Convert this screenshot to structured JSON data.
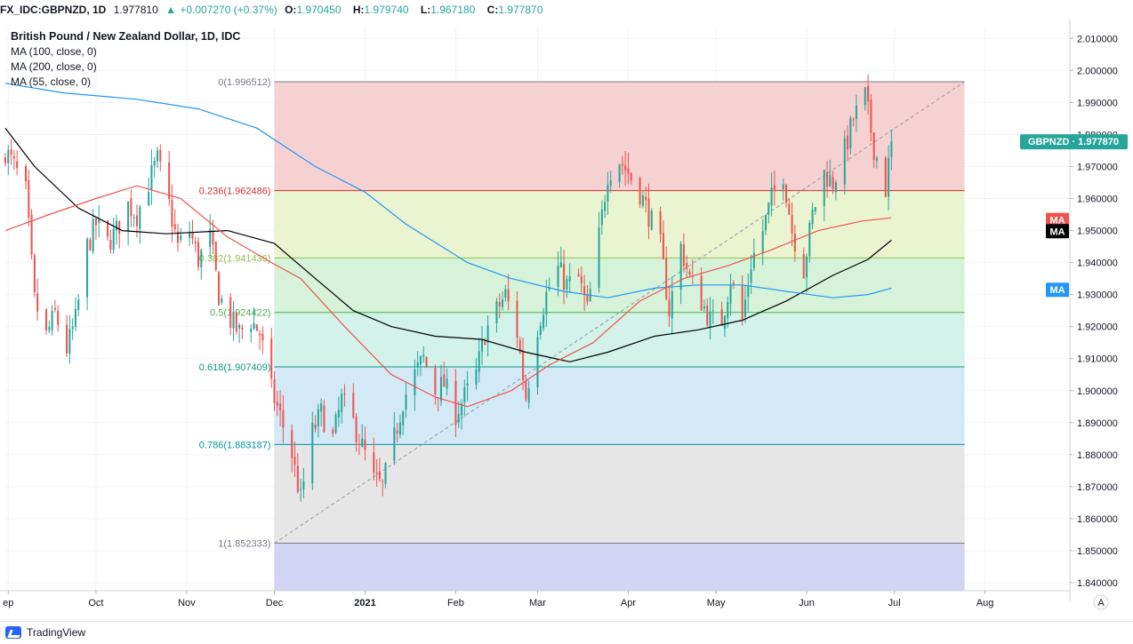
{
  "header": {
    "symbol": "FX_IDC:GBPNZD, 1D",
    "last": "1.977810",
    "change": "+0.007270 (+0.37%)",
    "o_label": "O:",
    "o": "1.970450",
    "h_label": "H:",
    "h": "1.979740",
    "l_label": "L:",
    "l": "1.967180",
    "c_label": "C:",
    "c": "1.977870"
  },
  "legend": {
    "title": "British Pound / New Zealand Dollar, 1D, IDC",
    "items": [
      "MA (100, close, 0)",
      "MA (200, close, 0)",
      "MA (55, close, 0)"
    ]
  },
  "footer": {
    "brand": "TradingView"
  },
  "chart_data": {
    "type": "candlestick",
    "x_axis": {
      "range": [
        "2020-08-31",
        "2021-08-30"
      ],
      "ticks": [
        {
          "label": "ep",
          "date": "2020-09-01"
        },
        {
          "label": "Oct",
          "date": "2020-10-01"
        },
        {
          "label": "Nov",
          "date": "2020-11-01"
        },
        {
          "label": "Dec",
          "date": "2020-12-01"
        },
        {
          "label": "2021",
          "date": "2021-01-01"
        },
        {
          "label": "Feb",
          "date": "2021-02-01"
        },
        {
          "label": "Mar",
          "date": "2021-03-01"
        },
        {
          "label": "Apr",
          "date": "2021-04-01"
        },
        {
          "label": "May",
          "date": "2021-05-01"
        },
        {
          "label": "Jun",
          "date": "2021-06-01"
        },
        {
          "label": "Jul",
          "date": "2021-07-01"
        },
        {
          "label": "Aug",
          "date": "2021-08-01"
        }
      ]
    },
    "y_axis": {
      "range": [
        1.8375,
        2.0137
      ],
      "ticks": [
        "2.010000",
        "2.000000",
        "1.990000",
        "1.980000",
        "1.970000",
        "1.960000",
        "1.950000",
        "1.940000",
        "1.930000",
        "1.920000",
        "1.910000",
        "1.900000",
        "1.890000",
        "1.880000",
        "1.870000",
        "1.860000",
        "1.850000",
        "1.840000"
      ]
    },
    "price_badge": {
      "text": "GBPNZD · 1.977870",
      "value": 1.97787
    },
    "ma_badges": [
      {
        "text": "MA",
        "value": 1.9533,
        "color": "#ef5350"
      },
      {
        "text": "MA",
        "value": 1.9498,
        "color": "#000000"
      },
      {
        "text": "MA",
        "value": 1.9315,
        "color": "#2196f3"
      }
    ],
    "axis_corner_label": "A",
    "fib": {
      "x_range": [
        "2020-12-01",
        "2021-07-25"
      ],
      "levels": [
        {
          "label": "0(1.996512)",
          "value": 1.996512,
          "color": "#787b86",
          "fill": "#f6d1d1"
        },
        {
          "label": "0.236(1.962486)",
          "value": 1.962486,
          "color": "#d32f2f",
          "fill": "#eaf4d1"
        },
        {
          "label": "0.382(1.941436)",
          "value": 1.941436,
          "color": "#8bc34a",
          "fill": "#d6f3d9"
        },
        {
          "label": "0.5(1.924422)",
          "value": 1.924422,
          "color": "#4caf50",
          "fill": "#d2f2ea"
        },
        {
          "label": "0.618(1.907409)",
          "value": 1.907409,
          "color": "#089981",
          "fill": "#d3e9f5"
        },
        {
          "label": "0.786(1.883187)",
          "value": 1.883187,
          "color": "#0097a7",
          "fill": "#e6e6e6"
        },
        {
          "label": "1(1.852333)",
          "value": 1.852333,
          "color": "#787b86",
          "fill": "#d3d3f3"
        }
      ],
      "trend_line": [
        [
          "2020-12-01",
          1.852333
        ],
        [
          "2021-07-25",
          1.996512
        ]
      ]
    },
    "up_color": "#26a69a",
    "down_color": "#ef5350",
    "candles": {
      "anchors": [
        [
          "2020-08-31",
          1.975
        ],
        [
          "2020-09-03",
          1.97
        ],
        [
          "2020-09-07",
          1.962
        ],
        [
          "2020-09-10",
          1.928
        ],
        [
          "2020-09-14",
          1.917
        ],
        [
          "2020-09-17",
          1.924
        ],
        [
          "2020-09-21",
          1.913
        ],
        [
          "2020-09-24",
          1.922
        ],
        [
          "2020-09-28",
          1.945
        ],
        [
          "2020-10-01",
          1.952
        ],
        [
          "2020-10-05",
          1.946
        ],
        [
          "2020-10-08",
          1.95
        ],
        [
          "2020-10-12",
          1.958
        ],
        [
          "2020-10-15",
          1.955
        ],
        [
          "2020-10-19",
          1.965
        ],
        [
          "2020-10-22",
          1.972
        ],
        [
          "2020-10-26",
          1.958
        ],
        [
          "2020-10-29",
          1.945
        ],
        [
          "2020-11-02",
          1.95
        ],
        [
          "2020-11-05",
          1.941
        ],
        [
          "2020-11-09",
          1.948
        ],
        [
          "2020-11-12",
          1.93
        ],
        [
          "2020-11-16",
          1.922
        ],
        [
          "2020-11-19",
          1.918
        ],
        [
          "2020-11-23",
          1.922
        ],
        [
          "2020-11-26",
          1.918
        ],
        [
          "2020-11-30",
          1.9
        ],
        [
          "2020-12-03",
          1.892
        ],
        [
          "2020-12-07",
          1.88
        ],
        [
          "2020-12-10",
          1.866
        ],
        [
          "2020-12-14",
          1.887
        ],
        [
          "2020-12-17",
          1.893
        ],
        [
          "2020-12-21",
          1.885
        ],
        [
          "2020-12-24",
          1.897
        ],
        [
          "2020-12-28",
          1.89
        ],
        [
          "2021-01-01",
          1.88
        ],
        [
          "2021-01-04",
          1.872
        ],
        [
          "2021-01-07",
          1.87
        ],
        [
          "2021-01-11",
          1.885
        ],
        [
          "2021-01-14",
          1.897
        ],
        [
          "2021-01-18",
          1.905
        ],
        [
          "2021-01-21",
          1.91
        ],
        [
          "2021-01-25",
          1.9
        ],
        [
          "2021-01-28",
          1.902
        ],
        [
          "2021-02-01",
          1.893
        ],
        [
          "2021-02-04",
          1.898
        ],
        [
          "2021-02-08",
          1.905
        ],
        [
          "2021-02-11",
          1.918
        ],
        [
          "2021-02-15",
          1.925
        ],
        [
          "2021-02-18",
          1.93
        ],
        [
          "2021-02-22",
          1.918
        ],
        [
          "2021-02-25",
          1.898
        ],
        [
          "2021-03-01",
          1.92
        ],
        [
          "2021-03-04",
          1.93
        ],
        [
          "2021-03-08",
          1.938
        ],
        [
          "2021-03-11",
          1.933
        ],
        [
          "2021-03-15",
          1.935
        ],
        [
          "2021-03-18",
          1.925
        ],
        [
          "2021-03-22",
          1.948
        ],
        [
          "2021-03-25",
          1.968
        ],
        [
          "2021-03-29",
          1.972
        ],
        [
          "2021-04-01",
          1.968
        ],
        [
          "2021-04-05",
          1.962
        ],
        [
          "2021-04-08",
          1.955
        ],
        [
          "2021-04-12",
          1.945
        ],
        [
          "2021-04-15",
          1.925
        ],
        [
          "2021-04-19",
          1.945
        ],
        [
          "2021-04-22",
          1.935
        ],
        [
          "2021-04-26",
          1.928
        ],
        [
          "2021-04-29",
          1.922
        ],
        [
          "2021-05-03",
          1.922
        ],
        [
          "2021-05-06",
          1.935
        ],
        [
          "2021-05-10",
          1.922
        ],
        [
          "2021-05-13",
          1.94
        ],
        [
          "2021-05-17",
          1.95
        ],
        [
          "2021-05-20",
          1.96
        ],
        [
          "2021-05-24",
          1.968
        ],
        [
          "2021-05-27",
          1.95
        ],
        [
          "2021-05-31",
          1.938
        ],
        [
          "2021-06-03",
          1.955
        ],
        [
          "2021-06-07",
          1.968
        ],
        [
          "2021-06-10",
          1.965
        ],
        [
          "2021-06-14",
          1.975
        ],
        [
          "2021-06-17",
          1.985
        ],
        [
          "2021-06-21",
          1.992
        ],
        [
          "2021-06-24",
          1.976
        ],
        [
          "2021-06-28",
          1.963
        ],
        [
          "2021-06-30",
          1.978
        ]
      ],
      "last_close": 1.97787
    },
    "moving_averages": [
      {
        "name": "MA (100, close, 0)",
        "color": "#000000",
        "points": [
          [
            "2020-08-31",
            1.982
          ],
          [
            "2020-09-10",
            1.97
          ],
          [
            "2020-09-25",
            1.957
          ],
          [
            "2020-10-10",
            1.95
          ],
          [
            "2020-10-25",
            1.949
          ],
          [
            "2020-11-15",
            1.95
          ],
          [
            "2020-12-01",
            1.946
          ],
          [
            "2020-12-15",
            1.935
          ],
          [
            "2020-12-28",
            1.925
          ],
          [
            "2021-01-10",
            1.92
          ],
          [
            "2021-01-25",
            1.917
          ],
          [
            "2021-02-10",
            1.916
          ],
          [
            "2021-02-25",
            1.912
          ],
          [
            "2021-03-12",
            1.909
          ],
          [
            "2021-03-25",
            1.912
          ],
          [
            "2021-04-10",
            1.917
          ],
          [
            "2021-04-25",
            1.919
          ],
          [
            "2021-05-10",
            1.922
          ],
          [
            "2021-05-25",
            1.928
          ],
          [
            "2021-06-10",
            1.936
          ],
          [
            "2021-06-22",
            1.941
          ],
          [
            "2021-06-30",
            1.947
          ]
        ]
      },
      {
        "name": "MA (200, close, 0)",
        "color": "#2196f3",
        "points": [
          [
            "2020-08-31",
            1.996
          ],
          [
            "2020-09-20",
            1.993
          ],
          [
            "2020-10-15",
            1.991
          ],
          [
            "2020-11-05",
            1.988
          ],
          [
            "2020-11-25",
            1.982
          ],
          [
            "2020-12-15",
            1.97
          ],
          [
            "2021-01-01",
            1.962
          ],
          [
            "2021-01-15",
            1.952
          ],
          [
            "2021-02-05",
            1.94
          ],
          [
            "2021-02-20",
            1.935
          ],
          [
            "2021-03-10",
            1.931
          ],
          [
            "2021-03-25",
            1.929
          ],
          [
            "2021-04-10",
            1.932
          ],
          [
            "2021-04-25",
            1.933
          ],
          [
            "2021-05-10",
            1.933
          ],
          [
            "2021-05-25",
            1.931
          ],
          [
            "2021-06-10",
            1.929
          ],
          [
            "2021-06-22",
            1.93
          ],
          [
            "2021-06-30",
            1.932
          ]
        ]
      },
      {
        "name": "MA (55, close, 0)",
        "color": "#ef5350",
        "points": [
          [
            "2020-08-31",
            1.95
          ],
          [
            "2020-09-15",
            1.955
          ],
          [
            "2020-10-01",
            1.96
          ],
          [
            "2020-10-15",
            1.964
          ],
          [
            "2020-10-30",
            1.96
          ],
          [
            "2020-11-15",
            1.948
          ],
          [
            "2020-11-30",
            1.94
          ],
          [
            "2020-12-10",
            1.935
          ],
          [
            "2020-12-25",
            1.92
          ],
          [
            "2021-01-10",
            1.905
          ],
          [
            "2021-01-25",
            1.898
          ],
          [
            "2021-02-05",
            1.895
          ],
          [
            "2021-02-20",
            1.9
          ],
          [
            "2021-03-05",
            1.908
          ],
          [
            "2021-03-20",
            1.915
          ],
          [
            "2021-04-05",
            1.928
          ],
          [
            "2021-04-20",
            1.935
          ],
          [
            "2021-05-05",
            1.939
          ],
          [
            "2021-05-20",
            1.944
          ],
          [
            "2021-06-05",
            1.95
          ],
          [
            "2021-06-20",
            1.953
          ],
          [
            "2021-06-30",
            1.954
          ]
        ]
      }
    ]
  }
}
